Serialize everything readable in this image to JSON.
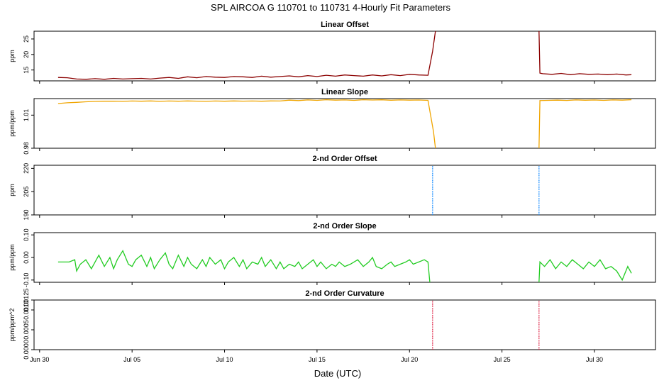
{
  "title": "SPL   AIRCOA G   110701 to 110731   4-Hourly Fit Parameters",
  "xlabel": "Date (UTC)",
  "x_ticks": [
    {
      "value": 0,
      "label": "Jun 30"
    },
    {
      "value": 5,
      "label": "Jul 05"
    },
    {
      "value": 10,
      "label": "Jul 10"
    },
    {
      "value": 15,
      "label": "Jul 15"
    },
    {
      "value": 20,
      "label": "Jul 20"
    },
    {
      "value": 25,
      "label": "Jul 25"
    },
    {
      "value": 30,
      "label": "Jul 30"
    }
  ],
  "xlim": [
    -0.3,
    33.3
  ],
  "chart_data": [
    {
      "type": "line",
      "title": "Linear Offset",
      "ylabel": "ppm",
      "ylim": [
        11.5,
        27.5
      ],
      "yticks": [
        {
          "value": 15,
          "label": "15"
        },
        {
          "value": 20,
          "label": "20"
        },
        {
          "value": 25,
          "label": "25"
        }
      ],
      "color": "#8b0000",
      "series": [
        {
          "x": [
            1.0,
            1.5,
            2.0,
            2.5,
            3.0,
            3.5,
            4.0,
            4.5,
            5.0,
            5.5,
            6.0,
            6.5,
            7.0,
            7.5,
            8.0,
            8.5,
            9.0,
            9.5,
            10.0,
            10.5,
            11.0,
            11.5,
            12.0,
            12.5,
            13.0,
            13.5,
            14.0,
            14.5,
            15.0,
            15.5,
            16.0,
            16.5,
            17.0,
            17.5,
            18.0,
            18.5,
            19.0,
            19.5,
            20.0,
            20.5,
            21.0,
            21.25,
            21.4
          ],
          "y": [
            12.6,
            12.5,
            12.1,
            12.0,
            12.2,
            12.0,
            12.3,
            12.1,
            12.2,
            12.3,
            12.1,
            12.4,
            12.6,
            12.3,
            12.8,
            12.5,
            12.9,
            12.7,
            12.6,
            12.9,
            12.8,
            12.6,
            13.0,
            12.7,
            12.9,
            13.1,
            12.8,
            13.2,
            12.9,
            13.3,
            13.0,
            13.4,
            13.2,
            13.0,
            13.4,
            13.1,
            13.5,
            13.2,
            13.6,
            13.4,
            13.3,
            21.0,
            27.5
          ]
        },
        {
          "x": [
            27.0,
            27.05,
            27.2,
            27.7,
            28.2,
            28.7,
            29.2,
            29.7,
            30.2,
            30.7,
            31.2,
            31.7,
            32.0
          ],
          "y": [
            27.5,
            14.0,
            13.8,
            13.6,
            13.9,
            13.5,
            13.8,
            13.6,
            13.7,
            13.5,
            13.7,
            13.4,
            13.5
          ]
        }
      ]
    },
    {
      "type": "line",
      "title": "Linear Slope",
      "ylabel": "ppm/ppm",
      "ylim": [
        0.98,
        1.025
      ],
      "yticks": [
        {
          "value": 0.98,
          "label": "0.98"
        },
        {
          "value": 1.01,
          "label": "1.01"
        }
      ],
      "color": "#f0a500",
      "series": [
        {
          "x": [
            1.0,
            1.5,
            2.0,
            2.5,
            3.0,
            3.5,
            4.0,
            4.5,
            5.0,
            5.5,
            6.0,
            6.5,
            7.0,
            7.5,
            8.0,
            8.5,
            9.0,
            9.5,
            10.0,
            10.5,
            11.0,
            11.5,
            12.0,
            12.5,
            13.0,
            13.5,
            14.0,
            14.5,
            15.0,
            15.5,
            16.0,
            16.5,
            17.0,
            17.5,
            18.0,
            18.5,
            19.0,
            19.5,
            20.0,
            20.5,
            21.0,
            21.3,
            21.4
          ],
          "y": [
            1.0205,
            1.0212,
            1.0216,
            1.0221,
            1.0224,
            1.0226,
            1.0227,
            1.0225,
            1.0228,
            1.0226,
            1.0229,
            1.0225,
            1.0228,
            1.0226,
            1.0229,
            1.0227,
            1.0225,
            1.0228,
            1.0226,
            1.0229,
            1.0227,
            1.0228,
            1.0226,
            1.0229,
            1.0228,
            1.0236,
            1.0232,
            1.0238,
            1.0234,
            1.024,
            1.0236,
            1.0238,
            1.0234,
            1.024,
            1.0237,
            1.0239,
            1.0235,
            1.0238,
            1.0236,
            1.0237,
            1.0234,
            0.995,
            0.98
          ]
        },
        {
          "x": [
            27.0,
            27.05,
            27.5,
            28.0,
            28.5,
            29.0,
            29.5,
            30.0,
            30.5,
            31.0,
            31.5,
            32.0
          ],
          "y": [
            0.98,
            1.0232,
            1.0234,
            1.0236,
            1.0233,
            1.0238,
            1.0235,
            1.0237,
            1.0234,
            1.0238,
            1.0236,
            1.024
          ]
        }
      ]
    },
    {
      "type": "line",
      "title": "2-nd Order Offset",
      "ylabel": "ppm",
      "ylim": [
        190,
        222
      ],
      "yticks": [
        {
          "value": 190,
          "label": "190"
        },
        {
          "value": 205,
          "label": "205"
        },
        {
          "value": 220,
          "label": "220"
        }
      ],
      "color": "#1e90ff",
      "series": [
        {
          "x": [
            21.25,
            21.25
          ],
          "y": [
            190,
            222
          ]
        },
        {
          "x": [
            27.0,
            27.0
          ],
          "y": [
            190,
            222
          ]
        }
      ]
    },
    {
      "type": "line",
      "title": "2-nd Order Slope",
      "ylabel": "ppm/ppm",
      "ylim": [
        -0.11,
        0.11
      ],
      "yticks": [
        {
          "value": -0.1,
          "label": "-0.10"
        },
        {
          "value": 0.0,
          "label": "0.00"
        },
        {
          "value": 0.1,
          "label": "0.10"
        }
      ],
      "color": "#22cc22",
      "series": [
        {
          "x": [
            1.0,
            1.3,
            1.6,
            1.9,
            2.0,
            2.2,
            2.5,
            2.8,
            3.0,
            3.2,
            3.5,
            3.8,
            4.0,
            4.2,
            4.5,
            4.8,
            5.0,
            5.2,
            5.5,
            5.8,
            6.0,
            6.2,
            6.5,
            6.8,
            7.0,
            7.2,
            7.5,
            7.8,
            8.0,
            8.2,
            8.5,
            8.8,
            9.0,
            9.2,
            9.5,
            9.8,
            10.0,
            10.2,
            10.5,
            10.8,
            11.0,
            11.2,
            11.5,
            11.8,
            12.0,
            12.2,
            12.5,
            12.8,
            13.0,
            13.2,
            13.5,
            13.8,
            14.0,
            14.2,
            14.5,
            14.8,
            15.0,
            15.2,
            15.5,
            15.8,
            16.0,
            16.2,
            16.5,
            16.8,
            17.0,
            17.2,
            17.5,
            17.8,
            18.0,
            18.2,
            18.5,
            18.8,
            19.0,
            19.2,
            19.5,
            19.8,
            20.0,
            20.2,
            20.5,
            20.8,
            21.0,
            21.1
          ],
          "y": [
            -0.02,
            -0.02,
            -0.02,
            -0.01,
            -0.06,
            -0.03,
            -0.01,
            -0.05,
            -0.02,
            0.01,
            -0.04,
            0.0,
            -0.05,
            -0.01,
            0.03,
            -0.03,
            -0.04,
            -0.01,
            0.01,
            -0.04,
            0.0,
            -0.05,
            -0.01,
            0.02,
            -0.03,
            -0.05,
            0.01,
            -0.04,
            0.0,
            -0.03,
            -0.05,
            -0.01,
            -0.04,
            0.0,
            -0.03,
            -0.01,
            -0.05,
            -0.02,
            0.0,
            -0.04,
            -0.01,
            -0.05,
            -0.02,
            -0.03,
            0.0,
            -0.04,
            -0.01,
            -0.05,
            -0.02,
            -0.05,
            -0.03,
            -0.04,
            -0.02,
            -0.05,
            -0.03,
            -0.01,
            -0.04,
            -0.02,
            -0.05,
            -0.03,
            -0.04,
            -0.02,
            -0.04,
            -0.03,
            -0.02,
            -0.01,
            -0.04,
            -0.02,
            0.0,
            -0.04,
            -0.05,
            -0.03,
            -0.02,
            -0.04,
            -0.03,
            -0.02,
            -0.01,
            -0.03,
            -0.02,
            -0.01,
            -0.02,
            -0.11
          ]
        },
        {
          "x": [
            27.0,
            27.05,
            27.3,
            27.6,
            27.9,
            28.2,
            28.5,
            28.8,
            29.1,
            29.4,
            29.7,
            30.0,
            30.3,
            30.6,
            30.9,
            31.2,
            31.5,
            31.8,
            32.0
          ],
          "y": [
            -0.11,
            -0.02,
            -0.04,
            -0.01,
            -0.05,
            -0.02,
            -0.04,
            -0.01,
            -0.03,
            -0.05,
            -0.02,
            -0.04,
            -0.01,
            -0.05,
            -0.04,
            -0.06,
            -0.1,
            -0.04,
            -0.07
          ]
        }
      ]
    },
    {
      "type": "line",
      "title": "2-nd Order Curvature",
      "ylabel": "ppm/ppm^2",
      "ylim": [
        0,
        0.00125
      ],
      "yticks": [
        {
          "value": 0.0,
          "label": "0.0000"
        },
        {
          "value": 0.0005,
          "label": "0.0005"
        },
        {
          "value": 0.001,
          "label": "0.0010"
        },
        {
          "value": 0.00125,
          "label": "0.00125"
        }
      ],
      "color": "#e03050",
      "series": [
        {
          "x": [
            21.25,
            21.25
          ],
          "y": [
            0,
            0.00125
          ]
        },
        {
          "x": [
            27.0,
            27.0
          ],
          "y": [
            0,
            0.00125
          ]
        }
      ]
    }
  ]
}
